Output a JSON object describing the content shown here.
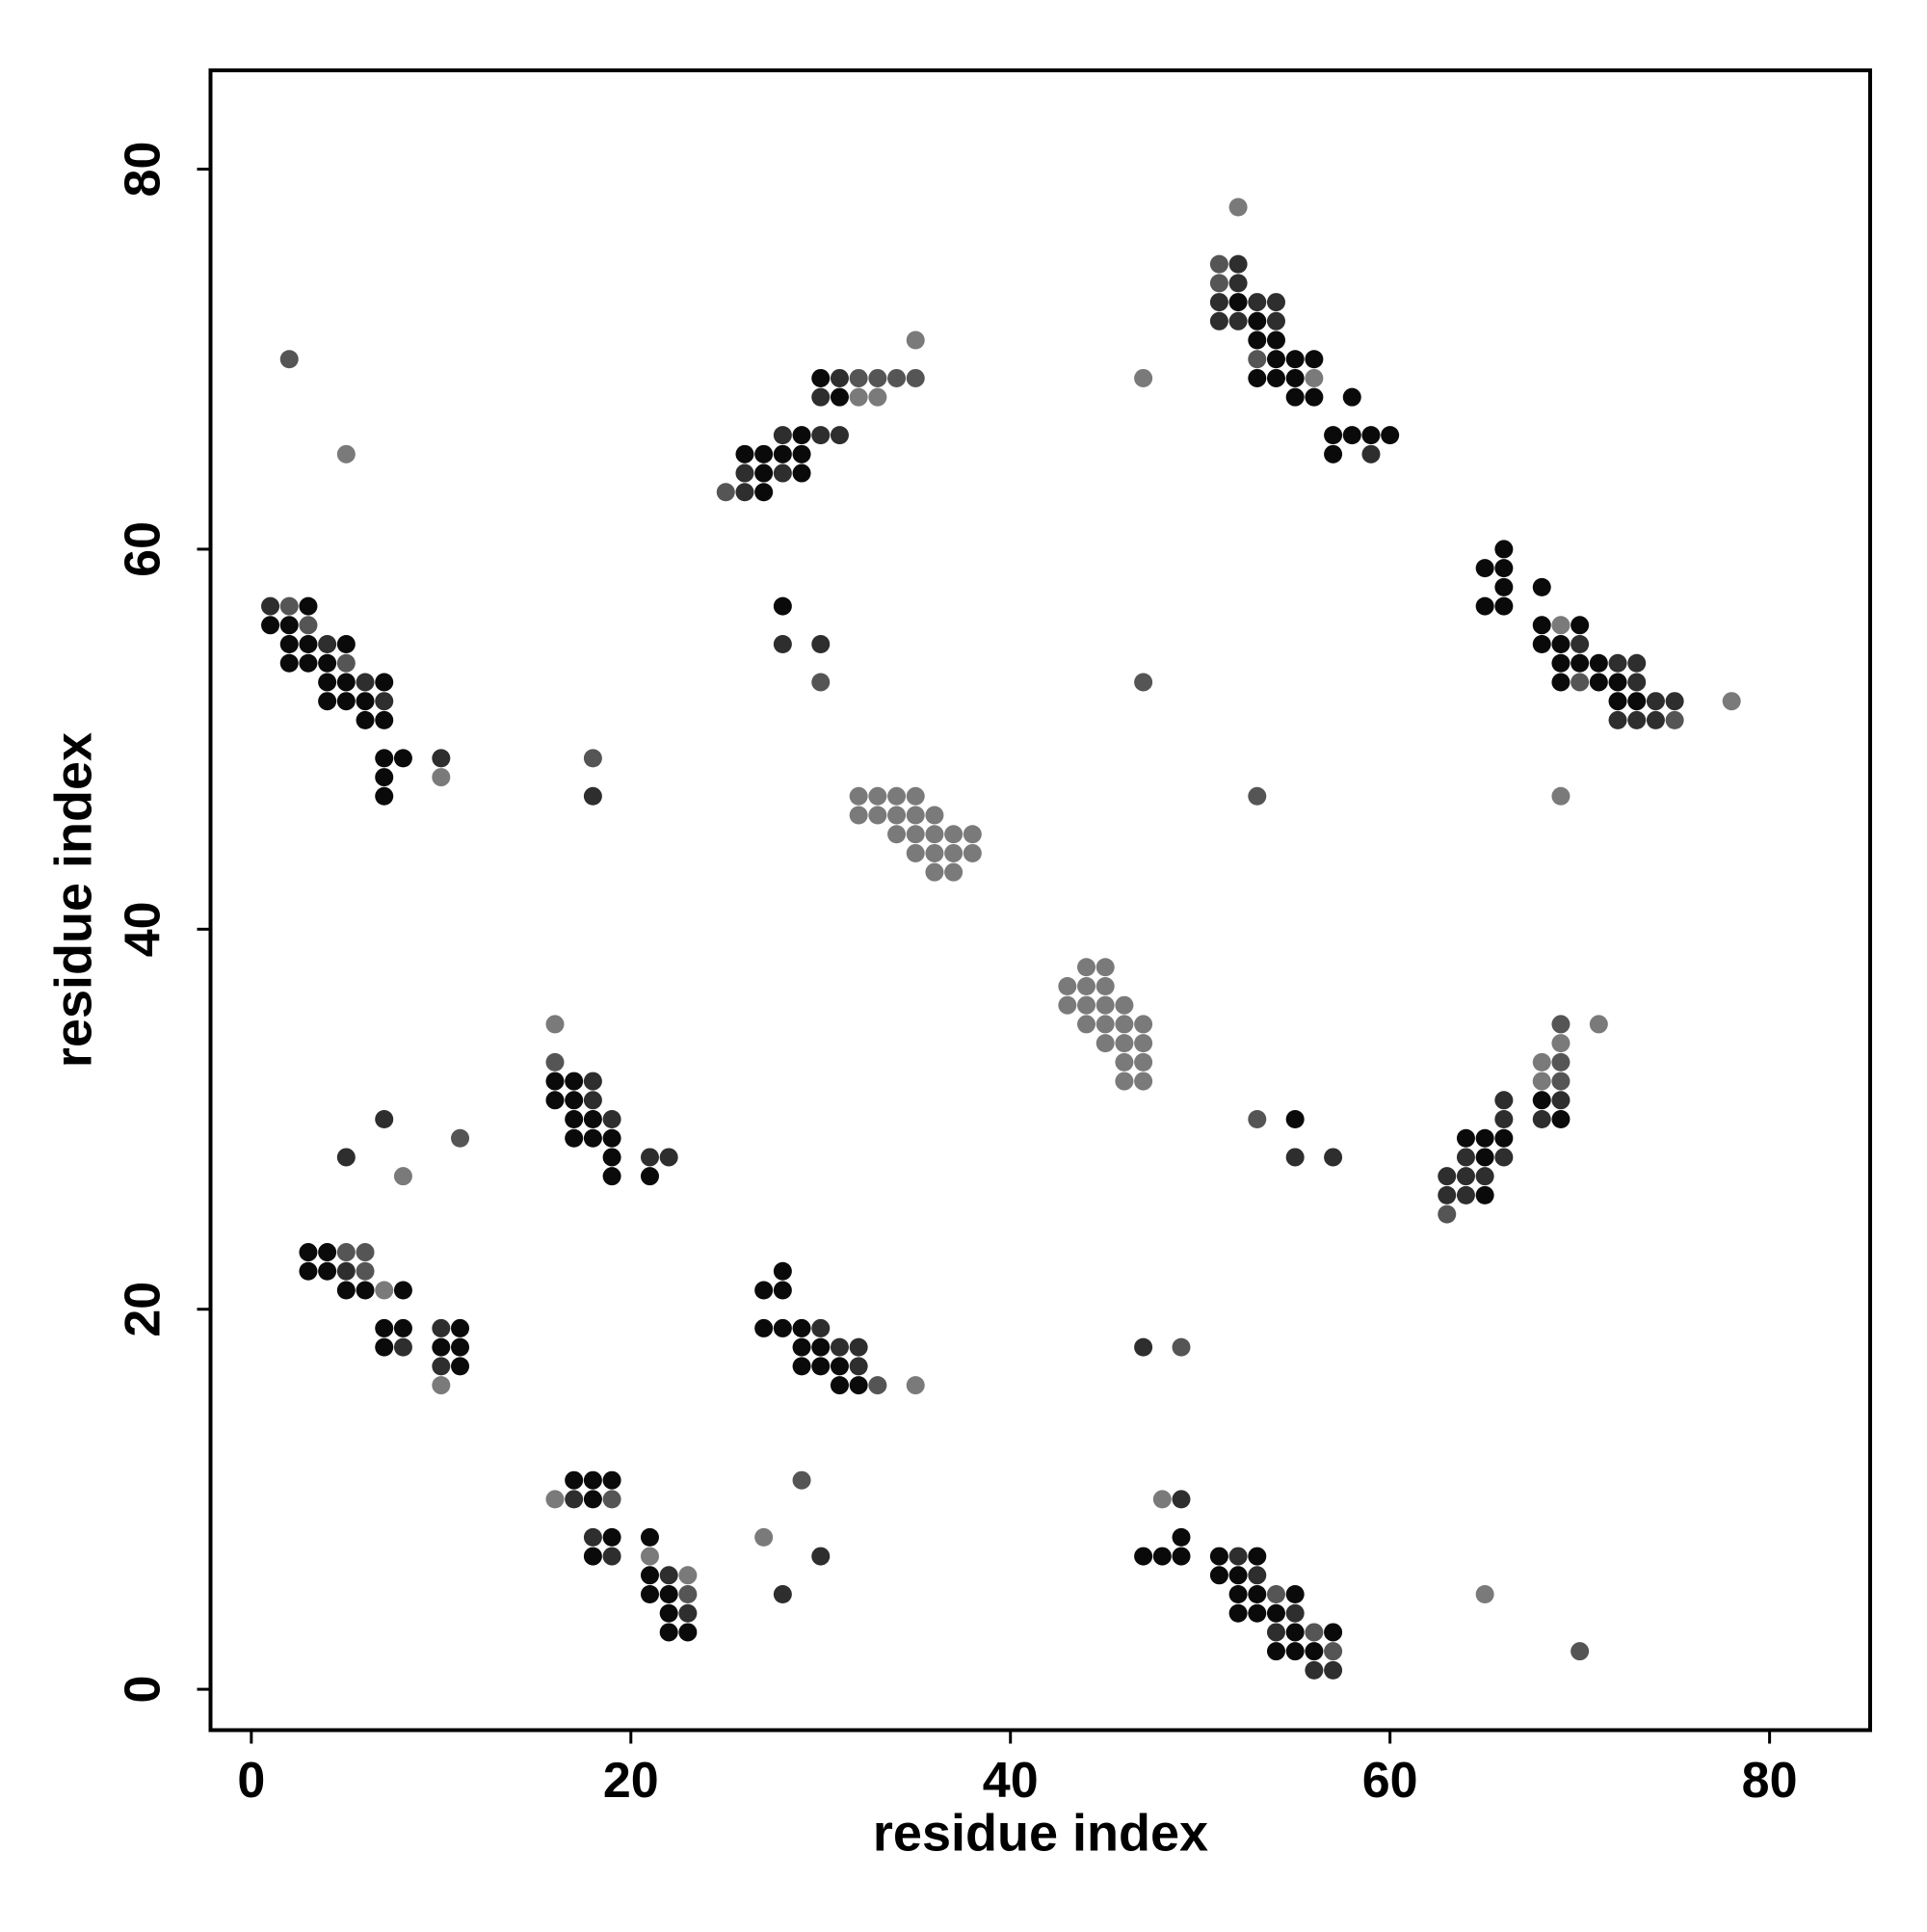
{
  "chart_data": {
    "type": "scatter",
    "xlabel": "residue index",
    "ylabel": "residue index",
    "xlim": [
      -2.15,
      85.3
    ],
    "ylim": [
      -2.15,
      85.2
    ],
    "xticks": [
      0,
      20,
      40,
      60,
      80
    ],
    "yticks": [
      0,
      20,
      40,
      60,
      80
    ],
    "series": [
      {
        "color": "#0a0a0a",
        "x": [
          3,
          1,
          2,
          2,
          3,
          5,
          2,
          3,
          4,
          4,
          5,
          7,
          4,
          5,
          6,
          6,
          7,
          7,
          8,
          7,
          7,
          28,
          30,
          31,
          29,
          26,
          27,
          28,
          29,
          27,
          29,
          27,
          52,
          53,
          53,
          54,
          54,
          55,
          56,
          53,
          54,
          55,
          55,
          56,
          58,
          57,
          58,
          59,
          60,
          57,
          66,
          65,
          66,
          66,
          68,
          65,
          66,
          68,
          70,
          68,
          69,
          69,
          70,
          71,
          69,
          71,
          72,
          72,
          73,
          16,
          17,
          16,
          17,
          17,
          18,
          17,
          18,
          19,
          19,
          19,
          21,
          68,
          69,
          64,
          65,
          66,
          65,
          65,
          55,
          3,
          4,
          3,
          4,
          5,
          6,
          8,
          7,
          8,
          11,
          7,
          10,
          11,
          11,
          28,
          27,
          28,
          27,
          28,
          29,
          29,
          30,
          29,
          30,
          31,
          31,
          32,
          17,
          18,
          19,
          18,
          19,
          21,
          18,
          21,
          21,
          22,
          22,
          22,
          23,
          49,
          47,
          48,
          49,
          51,
          53,
          51,
          52,
          52,
          53,
          55,
          52,
          53,
          54,
          55,
          57,
          54,
          55,
          56
        ],
        "values": [
          57,
          56,
          56,
          55,
          55,
          55,
          54,
          54,
          54,
          53,
          53,
          53,
          52,
          52,
          52,
          51,
          51,
          49,
          49,
          48,
          47,
          57,
          69,
          68,
          66,
          65,
          65,
          65,
          65,
          64,
          64,
          63,
          73,
          72,
          71,
          71,
          70,
          70,
          70,
          69,
          69,
          69,
          68,
          68,
          68,
          66,
          66,
          66,
          66,
          65,
          60,
          59,
          59,
          58,
          58,
          57,
          57,
          56,
          56,
          55,
          55,
          54,
          54,
          54,
          53,
          53,
          53,
          52,
          52,
          32,
          32,
          31,
          31,
          30,
          30,
          29,
          29,
          29,
          28,
          27,
          27,
          31,
          30,
          29,
          29,
          29,
          28,
          26,
          30,
          23,
          23,
          22,
          22,
          21,
          21,
          21,
          19,
          19,
          19,
          18,
          18,
          18,
          17,
          22,
          21,
          21,
          19,
          19,
          19,
          18,
          18,
          17,
          17,
          17,
          16,
          16,
          11,
          11,
          11,
          10,
          8,
          8,
          7,
          6,
          5,
          5,
          4,
          3,
          3,
          8,
          7,
          7,
          7,
          7,
          7,
          6,
          6,
          5,
          5,
          5,
          4,
          4,
          4,
          3,
          3,
          2,
          2,
          2
        ]
      },
      {
        "color": "#2e2e2e",
        "x": [
          1,
          4,
          6,
          7,
          10,
          18,
          28,
          30,
          31,
          30,
          28,
          30,
          31,
          26,
          28,
          26,
          52,
          52,
          51,
          53,
          54,
          51,
          52,
          54,
          59,
          70,
          72,
          73,
          73,
          74,
          75,
          72,
          73,
          74,
          5,
          7,
          18,
          18,
          19,
          21,
          22,
          66,
          69,
          66,
          68,
          64,
          66,
          63,
          64,
          65,
          63,
          64,
          55,
          57,
          5,
          10,
          8,
          10,
          30,
          31,
          32,
          32,
          47,
          17,
          18,
          19,
          22,
          23,
          30,
          28,
          49,
          52,
          53,
          55,
          54,
          56,
          57
        ],
        "values": [
          57,
          55,
          53,
          52,
          49,
          47,
          55,
          55,
          69,
          68,
          66,
          66,
          66,
          64,
          64,
          63,
          75,
          74,
          73,
          73,
          73,
          72,
          72,
          72,
          65,
          55,
          54,
          54,
          53,
          52,
          52,
          51,
          51,
          51,
          28,
          30,
          32,
          31,
          30,
          28,
          28,
          31,
          31,
          30,
          30,
          28,
          28,
          27,
          27,
          27,
          26,
          26,
          28,
          28,
          22,
          19,
          18,
          17,
          19,
          18,
          18,
          17,
          18,
          10,
          8,
          7,
          6,
          4,
          7,
          5,
          10,
          7,
          6,
          4,
          3,
          1,
          1
        ]
      },
      {
        "color": "#555555",
        "x": [
          2,
          2,
          3,
          5,
          18,
          30,
          47,
          53,
          32,
          33,
          34,
          35,
          25,
          51,
          51,
          53,
          75,
          70,
          11,
          16,
          69,
          69,
          69,
          63,
          53,
          5,
          6,
          6,
          33,
          49,
          19,
          23,
          29,
          54,
          56,
          57,
          70
        ],
        "values": [
          70,
          57,
          56,
          54,
          49,
          53,
          53,
          47,
          69,
          69,
          69,
          69,
          63,
          75,
          74,
          70,
          51,
          53,
          29,
          33,
          35,
          33,
          32,
          25,
          30,
          23,
          23,
          22,
          16,
          18,
          10,
          5,
          11,
          5,
          3,
          2,
          2
        ]
      },
      {
        "color": "#7a7a7a",
        "x": [
          5,
          10,
          69,
          35,
          32,
          33,
          47,
          52,
          56,
          69,
          78,
          32,
          33,
          34,
          35,
          32,
          33,
          34,
          35,
          36,
          34,
          35,
          36,
          37,
          38,
          35,
          36,
          37,
          38,
          36,
          37,
          44,
          45,
          43,
          44,
          45,
          43,
          44,
          45,
          46,
          44,
          45,
          46,
          47,
          45,
          46,
          47,
          46,
          47,
          46,
          47,
          8,
          16,
          71,
          69,
          68,
          68,
          7,
          10,
          35,
          16,
          21,
          23,
          27,
          48,
          65
        ],
        "values": [
          65,
          48,
          47,
          71,
          68,
          68,
          69,
          78,
          69,
          56,
          52,
          47,
          47,
          47,
          47,
          46,
          46,
          46,
          46,
          46,
          45,
          45,
          45,
          45,
          45,
          44,
          44,
          44,
          44,
          43,
          43,
          38,
          38,
          37,
          37,
          37,
          36,
          36,
          36,
          36,
          35,
          35,
          35,
          35,
          34,
          34,
          34,
          33,
          33,
          32,
          32,
          27,
          35,
          35,
          34,
          33,
          32,
          21,
          16,
          16,
          10,
          7,
          6,
          8,
          10,
          5
        ]
      }
    ]
  }
}
